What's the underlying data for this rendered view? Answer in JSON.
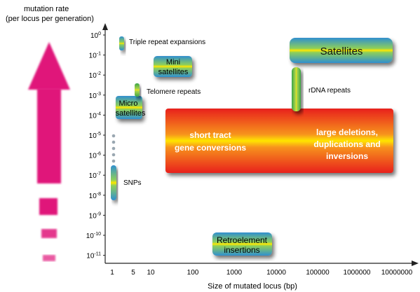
{
  "y_axis": {
    "title_line1": "mutation rate",
    "title_line2": "(per locus per generation)",
    "ticks": [
      {
        "base": "10",
        "exp": "0"
      },
      {
        "base": "10",
        "exp": "-1"
      },
      {
        "base": "10",
        "exp": "-2"
      },
      {
        "base": "10",
        "exp": "-3"
      },
      {
        "base": "10",
        "exp": "-4"
      },
      {
        "base": "10",
        "exp": "-5"
      },
      {
        "base": "10",
        "exp": "-6"
      },
      {
        "base": "10",
        "exp": "-7"
      },
      {
        "base": "10",
        "exp": "-8"
      },
      {
        "base": "10",
        "exp": "-9"
      },
      {
        "base": "10",
        "exp": "-10"
      },
      {
        "base": "10",
        "exp": "-11"
      }
    ]
  },
  "x_axis": {
    "title": "Size of mutated locus (bp)",
    "ticks": [
      "1",
      "5",
      "10",
      "100",
      "1000",
      "10000",
      "100000",
      "1000000",
      "10000000"
    ]
  },
  "labels": {
    "triple": "Triple repeat expansions",
    "mini_1": "Mini",
    "mini_2": "satellites",
    "telomere": "Telomere repeats",
    "micro_1": "Micro",
    "micro_2": "satellites",
    "snps": "SNPs",
    "satellites": "Satellites",
    "rdna": "rDNA repeats",
    "short_tract_1": "short tract",
    "short_tract_2": "gene conversions",
    "large_1": "large deletions,",
    "large_2": "duplications and",
    "large_3": "inversions",
    "retro_1": "Retroelement",
    "retro_2": "insertions"
  },
  "colors": {
    "arrow": "#e0157a",
    "box_blue": "#2f8fd0",
    "box_green": "#3aa54a",
    "box_highlight": "#ffe600",
    "big_box_red": "#e8201a",
    "big_box_orange": "#f7931e"
  }
}
